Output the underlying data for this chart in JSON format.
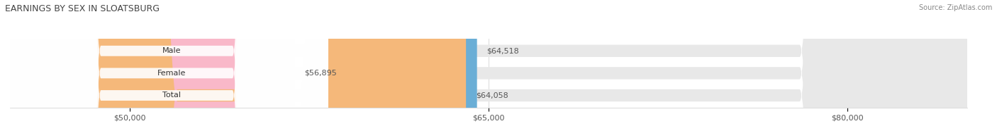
{
  "title": "EARNINGS BY SEX IN SLOATSBURG",
  "source": "Source: ZipAtlas.com",
  "categories": [
    "Male",
    "Female",
    "Total"
  ],
  "values": [
    64518,
    56895,
    64058
  ],
  "bar_colors": [
    "#6aaed6",
    "#f9b8c9",
    "#f5b87a"
  ],
  "x_min": 45000,
  "x_max": 85000,
  "x_ticks": [
    50000,
    65000,
    80000
  ],
  "x_tick_labels": [
    "$50,000",
    "$65,000",
    "$80,000"
  ],
  "bar_height": 0.55,
  "bar_bg_color": "#e8e8e8",
  "value_labels": [
    "$64,518",
    "$56,895",
    "$64,058"
  ],
  "category_label_fontsize": 8,
  "value_label_fontsize": 8,
  "title_fontsize": 9,
  "tick_fontsize": 8
}
